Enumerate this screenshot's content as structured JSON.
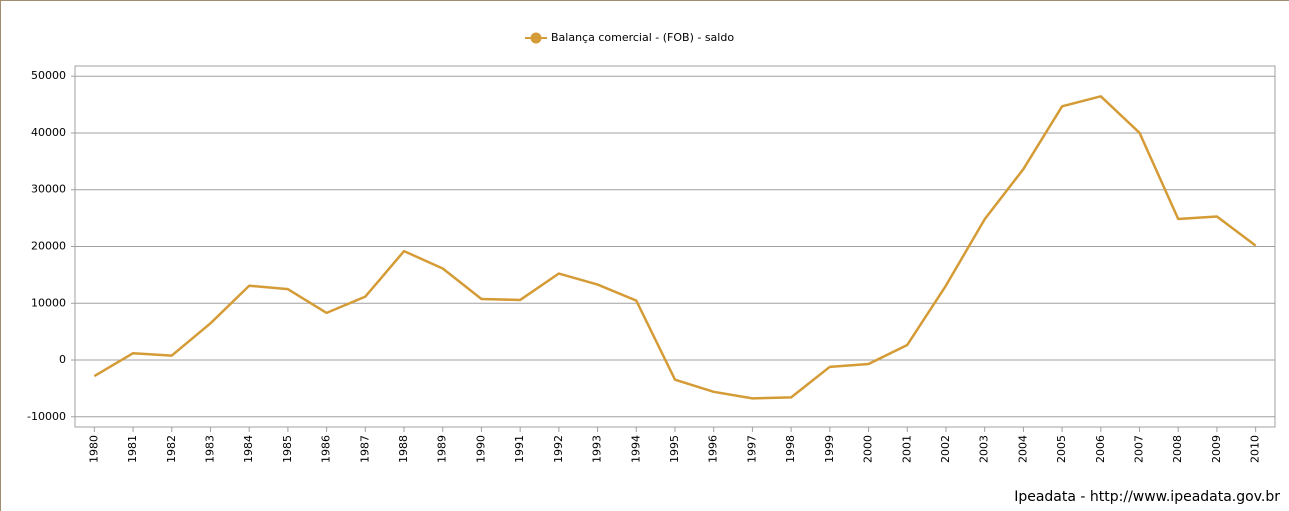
{
  "chart_data": {
    "type": "line",
    "legend_position": "top",
    "source": "Ipeadata - http://www.ipeadata.gov.br",
    "x": [
      1980,
      1981,
      1982,
      1983,
      1984,
      1985,
      1986,
      1987,
      1988,
      1989,
      1990,
      1991,
      1992,
      1993,
      1994,
      1995,
      1996,
      1997,
      1998,
      1999,
      2000,
      2001,
      2002,
      2003,
      2004,
      2005,
      2006,
      2007,
      2008,
      2009,
      2010
    ],
    "series": [
      {
        "name": "Balança comercial - (FOB) - saldo",
        "color": "#d49b36",
        "values": [
          -2823,
          1202,
          780,
          6470,
          13090,
          12486,
          8304,
          11173,
          19184,
          16119,
          10752,
          10580,
          15239,
          13299,
          10466,
          -3466,
          -5599,
          -6753,
          -6575,
          -1199,
          -698,
          2650,
          13121,
          24794,
          33641,
          44703,
          46457,
          40032,
          24836,
          25290,
          20147
        ]
      }
    ],
    "xlim": [
      1979.5,
      2010.5
    ],
    "xticks": [
      1980,
      1981,
      1982,
      1983,
      1984,
      1985,
      1986,
      1987,
      1988,
      1989,
      1990,
      1991,
      1992,
      1993,
      1994,
      1995,
      1996,
      1997,
      1998,
      1999,
      2000,
      2001,
      2002,
      2003,
      2004,
      2005,
      2006,
      2007,
      2008,
      2009,
      2010
    ],
    "ylim": [
      -11800,
      51800
    ],
    "yticks": [
      -10000,
      0,
      10000,
      20000,
      30000,
      40000,
      50000
    ],
    "grid": true
  }
}
